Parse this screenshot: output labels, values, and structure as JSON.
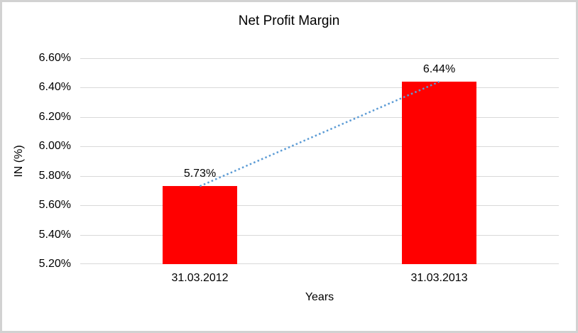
{
  "chart_data": {
    "type": "bar",
    "title": "Net Profit Margin",
    "xlabel": "Years",
    "ylabel": "IN (%)",
    "categories": [
      "31.03.2012",
      "31.03.2013"
    ],
    "values": [
      5.73,
      6.44
    ],
    "data_labels": [
      "5.73%",
      "6.44%"
    ],
    "ylim": [
      5.2,
      6.6
    ],
    "ytick_step": 0.2,
    "ytick_labels": [
      "5.20%",
      "5.40%",
      "5.60%",
      "5.80%",
      "6.00%",
      "6.20%",
      "6.40%",
      "6.60%"
    ],
    "grid": true,
    "legend": "none",
    "colors": {
      "bar": "#ff0000",
      "trendline": "#5b9bd5",
      "gridline": "#d9d9d9",
      "frame_border": "#d2d2d2",
      "text": "#000000"
    },
    "trendline": {
      "style": "dotted",
      "from_value": 5.73,
      "to_value": 6.44
    }
  }
}
